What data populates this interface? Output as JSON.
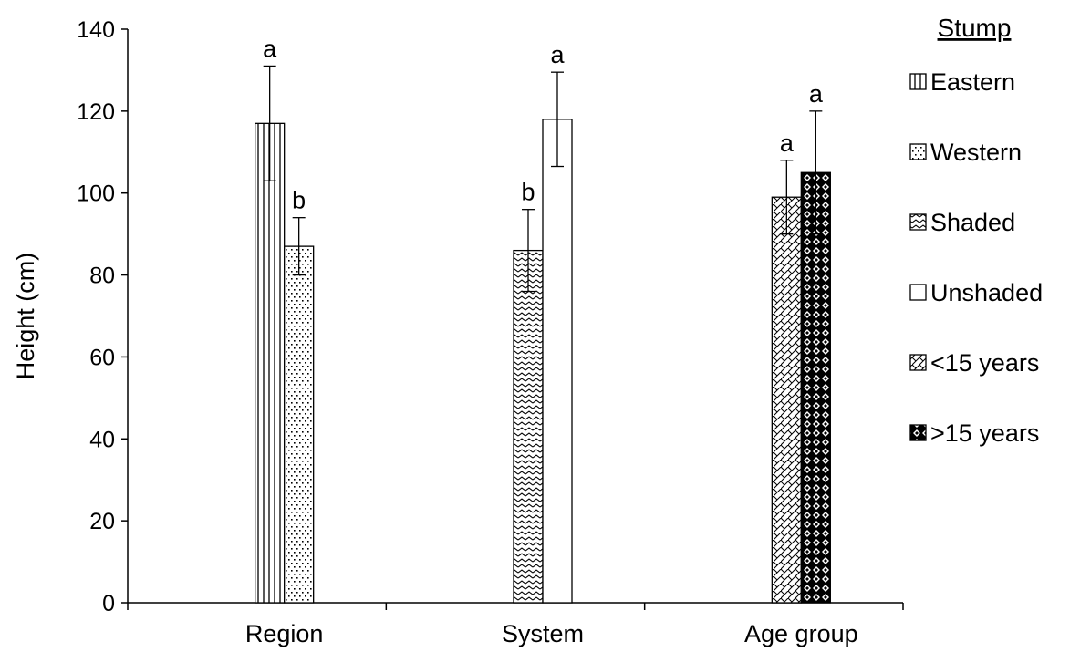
{
  "chart_data": {
    "type": "bar",
    "title": "",
    "xlabel": "",
    "ylabel": "Height  (cm)",
    "ylim": [
      0,
      140
    ],
    "yticks": [
      0,
      20,
      40,
      60,
      80,
      100,
      120,
      140
    ],
    "grid": false,
    "legend_position": "right",
    "legend_title": "Stump",
    "groups": [
      {
        "category": "Region",
        "bars": [
          {
            "series": "Eastern",
            "value": 117,
            "error": 14,
            "label": "a"
          },
          {
            "series": "Western",
            "value": 87,
            "error": 7,
            "label": "b"
          }
        ]
      },
      {
        "category": "System",
        "bars": [
          {
            "series": "Shaded",
            "value": 86,
            "error": 10,
            "label": "b"
          },
          {
            "series": "Unshaded",
            "value": 118,
            "error": 11.5,
            "label": "a"
          }
        ]
      },
      {
        "category": "Age group",
        "bars": [
          {
            "series": "<15 years",
            "value": 99,
            "error": 9,
            "label": "a"
          },
          {
            "series": ">15 years",
            "value": 105,
            "error": 15,
            "label": "a"
          }
        ]
      }
    ],
    "series": [
      {
        "name": "Eastern",
        "pattern": "vertical-lines"
      },
      {
        "name": "Western",
        "pattern": "small-dots"
      },
      {
        "name": "Shaded",
        "pattern": "zigzag"
      },
      {
        "name": "Unshaded",
        "pattern": "none"
      },
      {
        "name": "<15 years",
        "pattern": "diagonal-weave"
      },
      {
        "name": ">15 years",
        "pattern": "diamonds"
      }
    ]
  }
}
